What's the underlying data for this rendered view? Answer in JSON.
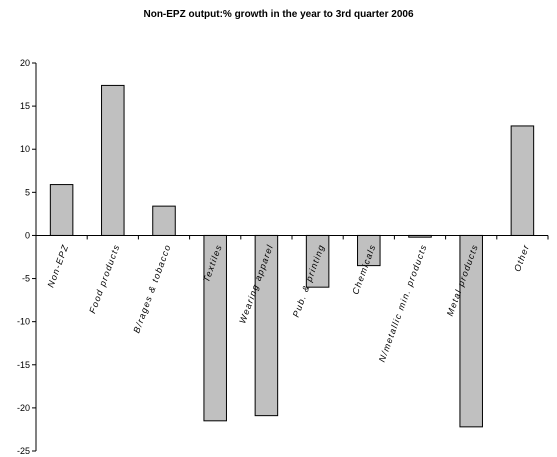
{
  "chart_data": {
    "type": "bar",
    "title": "Non-EPZ output:% growth in the year to 3rd quarter 2006",
    "categories": [
      "Non-EPZ",
      "Food products",
      "B/rages & tobacco",
      "Textiles",
      "Wearing apparel",
      "Pub. & printing",
      "Chemicals",
      "N/metallic min. products",
      "Metal products",
      "Other"
    ],
    "values": [
      5.9,
      17.4,
      3.4,
      -21.5,
      -20.9,
      -6.0,
      -3.5,
      -0.2,
      -22.2,
      12.7
    ],
    "ylim": [
      -25,
      20
    ],
    "yticks": [
      20,
      15,
      10,
      5,
      0,
      -5,
      -10,
      -15,
      -20,
      -25
    ],
    "xlabel": "",
    "ylabel": "",
    "grid": false,
    "legend": "none",
    "bar_color": "#c0c0c0"
  }
}
